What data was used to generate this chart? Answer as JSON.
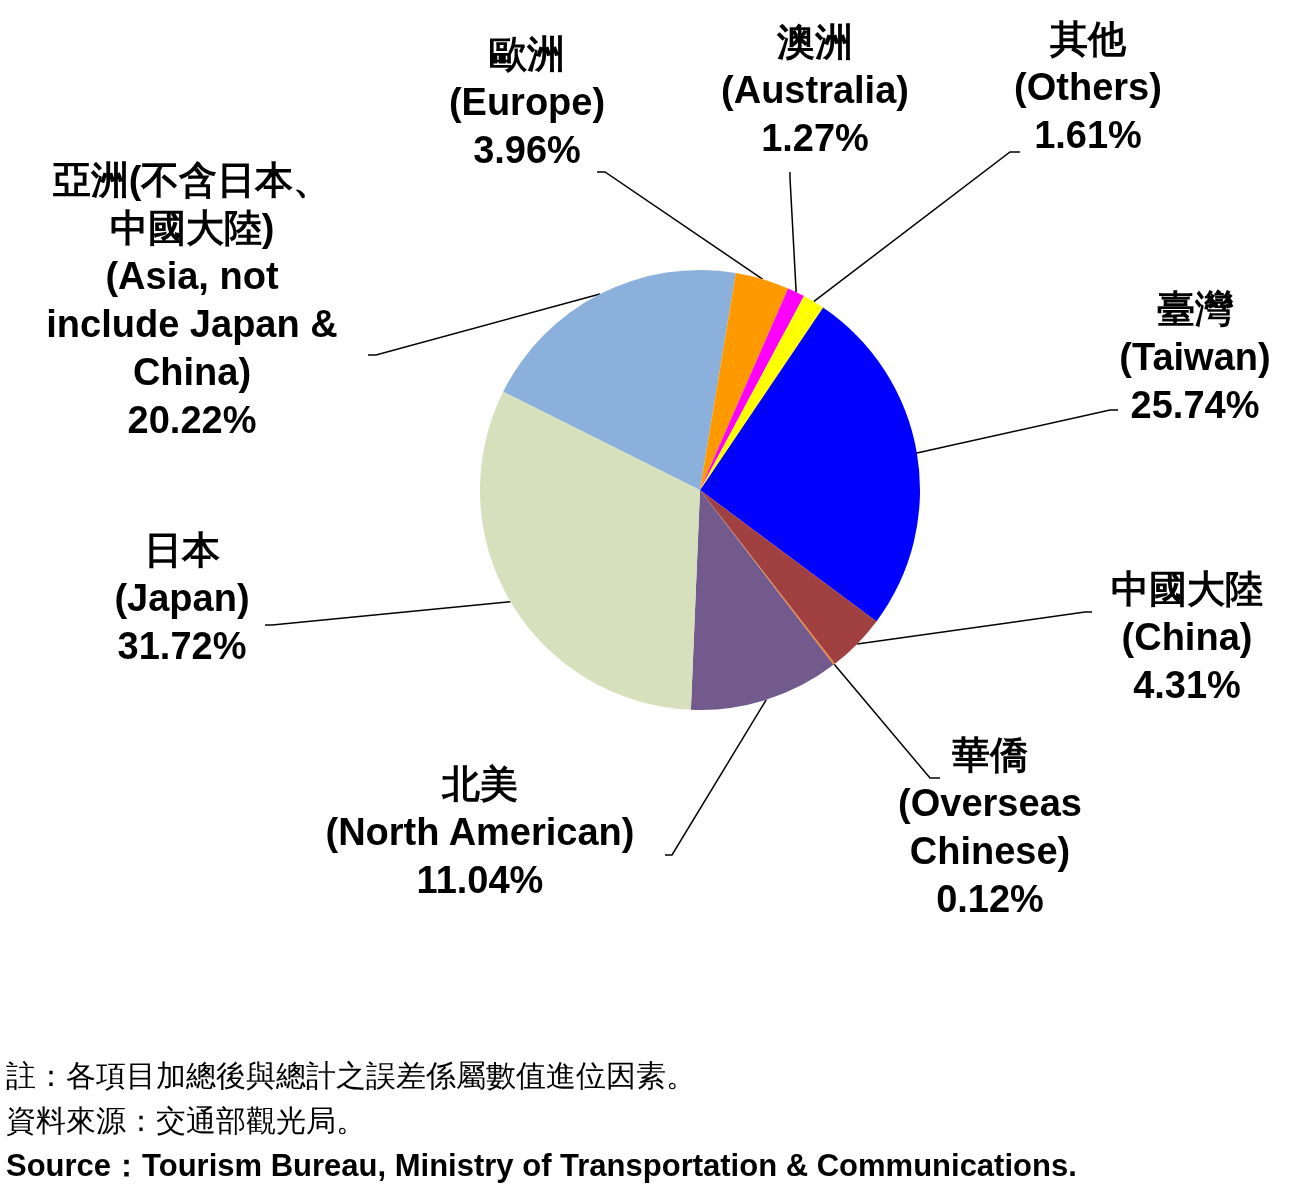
{
  "chart_data": {
    "type": "pie",
    "categories": [
      "臺灣\n(Taiwan)",
      "中國大陸\n(China)",
      "華僑\n(Overseas\nChinese)",
      "北美\n(North American)",
      "日本\n(Japan)",
      "亞洲(不含日本、中國大陸)\n(Asia, not\ninclude Japan &\nChina)",
      "歐洲\n(Europe)",
      "澳洲\n(Australia)",
      "其他\n(Others)"
    ],
    "values": [
      25.74,
      4.31,
      0.12,
      11.04,
      31.72,
      20.22,
      3.96,
      1.27,
      1.61
    ],
    "value_labels": [
      "25.74%",
      "4.31%",
      "0.12%",
      "11.04%",
      "31.72%",
      "20.22%",
      "3.96%",
      "1.27%",
      "1.61%"
    ],
    "colors": [
      "#0000ff",
      "#a04040",
      "#f08030",
      "#725a8c",
      "#d6e0bc",
      "#8cb0dc",
      "#ff9900",
      "#ff00ff",
      "#ffff00"
    ],
    "annotations": [
      "註：各項目加總後與總計之誤差係屬數值進位因素。",
      "資料來源：交通部觀光局。",
      "Source：Tourism Bureau, Ministry of Transportation & Communications."
    ]
  }
}
